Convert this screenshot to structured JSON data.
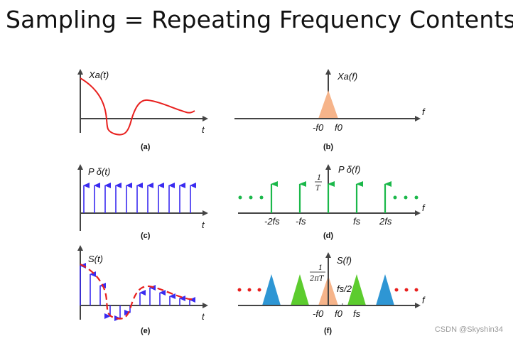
{
  "title": "Sampling = Repeating Frequency Contents",
  "panels": {
    "a": {
      "label": "Xa(t)",
      "axis": "t",
      "caption": "(a)"
    },
    "b": {
      "label": "Xa(f)",
      "axis": "f",
      "caption": "(b)",
      "ticks": [
        "-f0",
        "f0"
      ]
    },
    "c": {
      "label": "P δ(t)",
      "axis": "t",
      "caption": "(c)"
    },
    "d": {
      "label": "P δ(f)",
      "axis": "f",
      "caption": "(d)",
      "amp_num": "1",
      "amp_den": "T",
      "ticks": [
        "-2fs",
        "-fs",
        "fs",
        "2fs"
      ]
    },
    "e": {
      "label": "S(t)",
      "axis": "t",
      "caption": "(e)"
    },
    "f": {
      "label": "S(f)",
      "axis": "f",
      "caption": "(f)",
      "amp_num": "1",
      "amp_den": "2πT",
      "half": "fs/2",
      "ticks": [
        "-f0",
        "f0",
        "fs"
      ]
    }
  },
  "watermark": "CSDN @Skyshin34",
  "colors": {
    "red": "#e8201e",
    "blue": "#3a2bf0",
    "green": "#1bb84a",
    "orange": "#f6b48a",
    "lightblue": "#2e96d4",
    "lightgreen": "#5ccc2e",
    "axis": "#444444"
  }
}
